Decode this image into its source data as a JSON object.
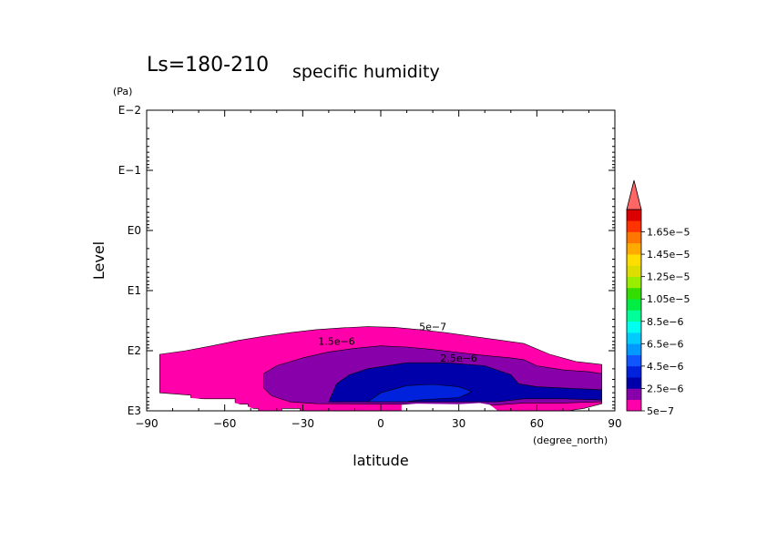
{
  "chart_data": {
    "type": "contour",
    "title": "Ls=180-210",
    "subtitle": "specific humidity",
    "xlabel": "latitude",
    "xunit": "(degree_north)",
    "ylabel": "Level",
    "yunit": "(Pa)",
    "xlim": [
      -90,
      90
    ],
    "xticks": [
      "−90",
      "−60",
      "−30",
      "0",
      "30",
      "60",
      "90"
    ],
    "xtick_values": [
      -90,
      -60,
      -30,
      0,
      30,
      60,
      90
    ],
    "yscale": "log",
    "yticks": [
      "E−2",
      "E−1",
      "E0",
      "E1",
      "E2",
      "E3"
    ],
    "ytick_exponents": [
      -2,
      -1,
      0,
      1,
      2,
      3
    ],
    "contour_labels": [
      {
        "text": "5e−7",
        "x": 20,
        "logp": 1.66
      },
      {
        "text": "1.5e−6",
        "x": -17,
        "logp": 1.9
      },
      {
        "text": "2.5e−6",
        "x": 30,
        "logp": 2.18
      }
    ],
    "colorbar": {
      "labels": [
        "1.65e−5",
        "1.45e−5",
        "1.25e−5",
        "1.05e−5",
        "8.5e−6",
        "6.5e−6",
        "4.5e−6",
        "2.5e−6",
        "5e−7"
      ],
      "colors_bottom_to_top": [
        "#ff00aa",
        "#8800aa",
        "#0000aa",
        "#0022dd",
        "#1155ff",
        "#0099ff",
        "#00ccff",
        "#00ffee",
        "#00ff99",
        "#00ee44",
        "#33dd00",
        "#99ee00",
        "#dddd00",
        "#ffdd00",
        "#ffaa00",
        "#ff7700",
        "#ff3300",
        "#dd0000"
      ],
      "extend_color": "#ff6666"
    },
    "bands": [
      {
        "level": "5e−7",
        "color": "#ff00aa",
        "outline": [
          [
            -85,
            2.06
          ],
          [
            -75,
            2.0
          ],
          [
            -65,
            1.92
          ],
          [
            -55,
            1.83
          ],
          [
            -45,
            1.76
          ],
          [
            -35,
            1.7
          ],
          [
            -25,
            1.65
          ],
          [
            -15,
            1.62
          ],
          [
            -5,
            1.6
          ],
          [
            5,
            1.61
          ],
          [
            15,
            1.65
          ],
          [
            25,
            1.7
          ],
          [
            35,
            1.76
          ],
          [
            45,
            1.82
          ],
          [
            55,
            1.88
          ],
          [
            65,
            2.06
          ],
          [
            75,
            2.18
          ],
          [
            85,
            2.23
          ],
          [
            85,
            2.88
          ],
          [
            78,
            2.96
          ],
          [
            72,
            3.0
          ],
          [
            -31,
            3.0
          ],
          [
            -31,
            2.96
          ],
          [
            -38,
            2.96
          ],
          [
            -38,
            3.0
          ],
          [
            -47,
            3.0
          ],
          [
            -47,
            2.96
          ],
          [
            -51,
            2.96
          ],
          [
            -51,
            2.89
          ],
          [
            -56,
            2.89
          ],
          [
            -56,
            2.8
          ],
          [
            -61,
            2.8
          ],
          [
            -61,
            2.8
          ],
          [
            -73,
            2.8
          ],
          [
            -73,
            2.74
          ],
          [
            -85,
            2.7
          ]
        ]
      },
      {
        "level": "1.5e−6",
        "color": "#8800aa",
        "outline": [
          [
            -45,
            2.38
          ],
          [
            -40,
            2.25
          ],
          [
            -30,
            2.12
          ],
          [
            -20,
            2.02
          ],
          [
            -10,
            1.96
          ],
          [
            0,
            1.92
          ],
          [
            10,
            1.94
          ],
          [
            20,
            1.98
          ],
          [
            30,
            2.03
          ],
          [
            40,
            2.08
          ],
          [
            50,
            2.12
          ],
          [
            55,
            2.15
          ],
          [
            60,
            2.25
          ],
          [
            70,
            2.32
          ],
          [
            80,
            2.35
          ],
          [
            85,
            2.38
          ],
          [
            85,
            2.85
          ],
          [
            70,
            2.87
          ],
          [
            55,
            2.87
          ],
          [
            45,
            2.9
          ],
          [
            -25,
            2.88
          ],
          [
            -35,
            2.85
          ],
          [
            -42,
            2.75
          ],
          [
            -45,
            2.62
          ]
        ]
      },
      {
        "level": "2.5e−6",
        "color": "#0000aa",
        "outline": [
          [
            -20,
            2.85
          ],
          [
            -17,
            2.55
          ],
          [
            -12,
            2.4
          ],
          [
            -5,
            2.3
          ],
          [
            10,
            2.2
          ],
          [
            25,
            2.2
          ],
          [
            40,
            2.25
          ],
          [
            50,
            2.4
          ],
          [
            53,
            2.55
          ],
          [
            60,
            2.6
          ],
          [
            70,
            2.62
          ],
          [
            85,
            2.65
          ],
          [
            85,
            2.82
          ],
          [
            70,
            2.8
          ],
          [
            55,
            2.8
          ],
          [
            45,
            2.85
          ],
          [
            30,
            2.85
          ],
          [
            0,
            2.85
          ],
          [
            -10,
            2.85
          ]
        ]
      },
      {
        "level": "4.5e−6",
        "color": "#0022dd",
        "outline": [
          [
            -5,
            2.85
          ],
          [
            0,
            2.7
          ],
          [
            10,
            2.58
          ],
          [
            20,
            2.56
          ],
          [
            30,
            2.6
          ],
          [
            35,
            2.68
          ],
          [
            30,
            2.78
          ],
          [
            15,
            2.82
          ],
          [
            10,
            2.85
          ]
        ]
      },
      {
        "level": "6.5e−6",
        "color": "#1155ff",
        "outline": [
          [
            13,
            2.98
          ],
          [
            14,
            2.9
          ],
          [
            22,
            2.9
          ],
          [
            13,
            2.98
          ]
        ]
      }
    ],
    "missing": [
      {
        "outline": [
          [
            -92,
            2.7
          ],
          [
            -85,
            2.75
          ],
          [
            -72,
            2.79
          ],
          [
            -61,
            2.84
          ],
          [
            -56,
            2.87
          ],
          [
            -51,
            2.93
          ],
          [
            -47,
            3.02
          ],
          [
            -92,
            3.02
          ]
        ]
      },
      {
        "outline": [
          [
            14,
            2.88
          ],
          [
            30,
            2.89
          ],
          [
            38,
            2.87
          ],
          [
            42,
            2.9
          ],
          [
            45,
            3.02
          ],
          [
            8,
            3.02
          ],
          [
            8,
            2.9
          ]
        ]
      }
    ]
  }
}
